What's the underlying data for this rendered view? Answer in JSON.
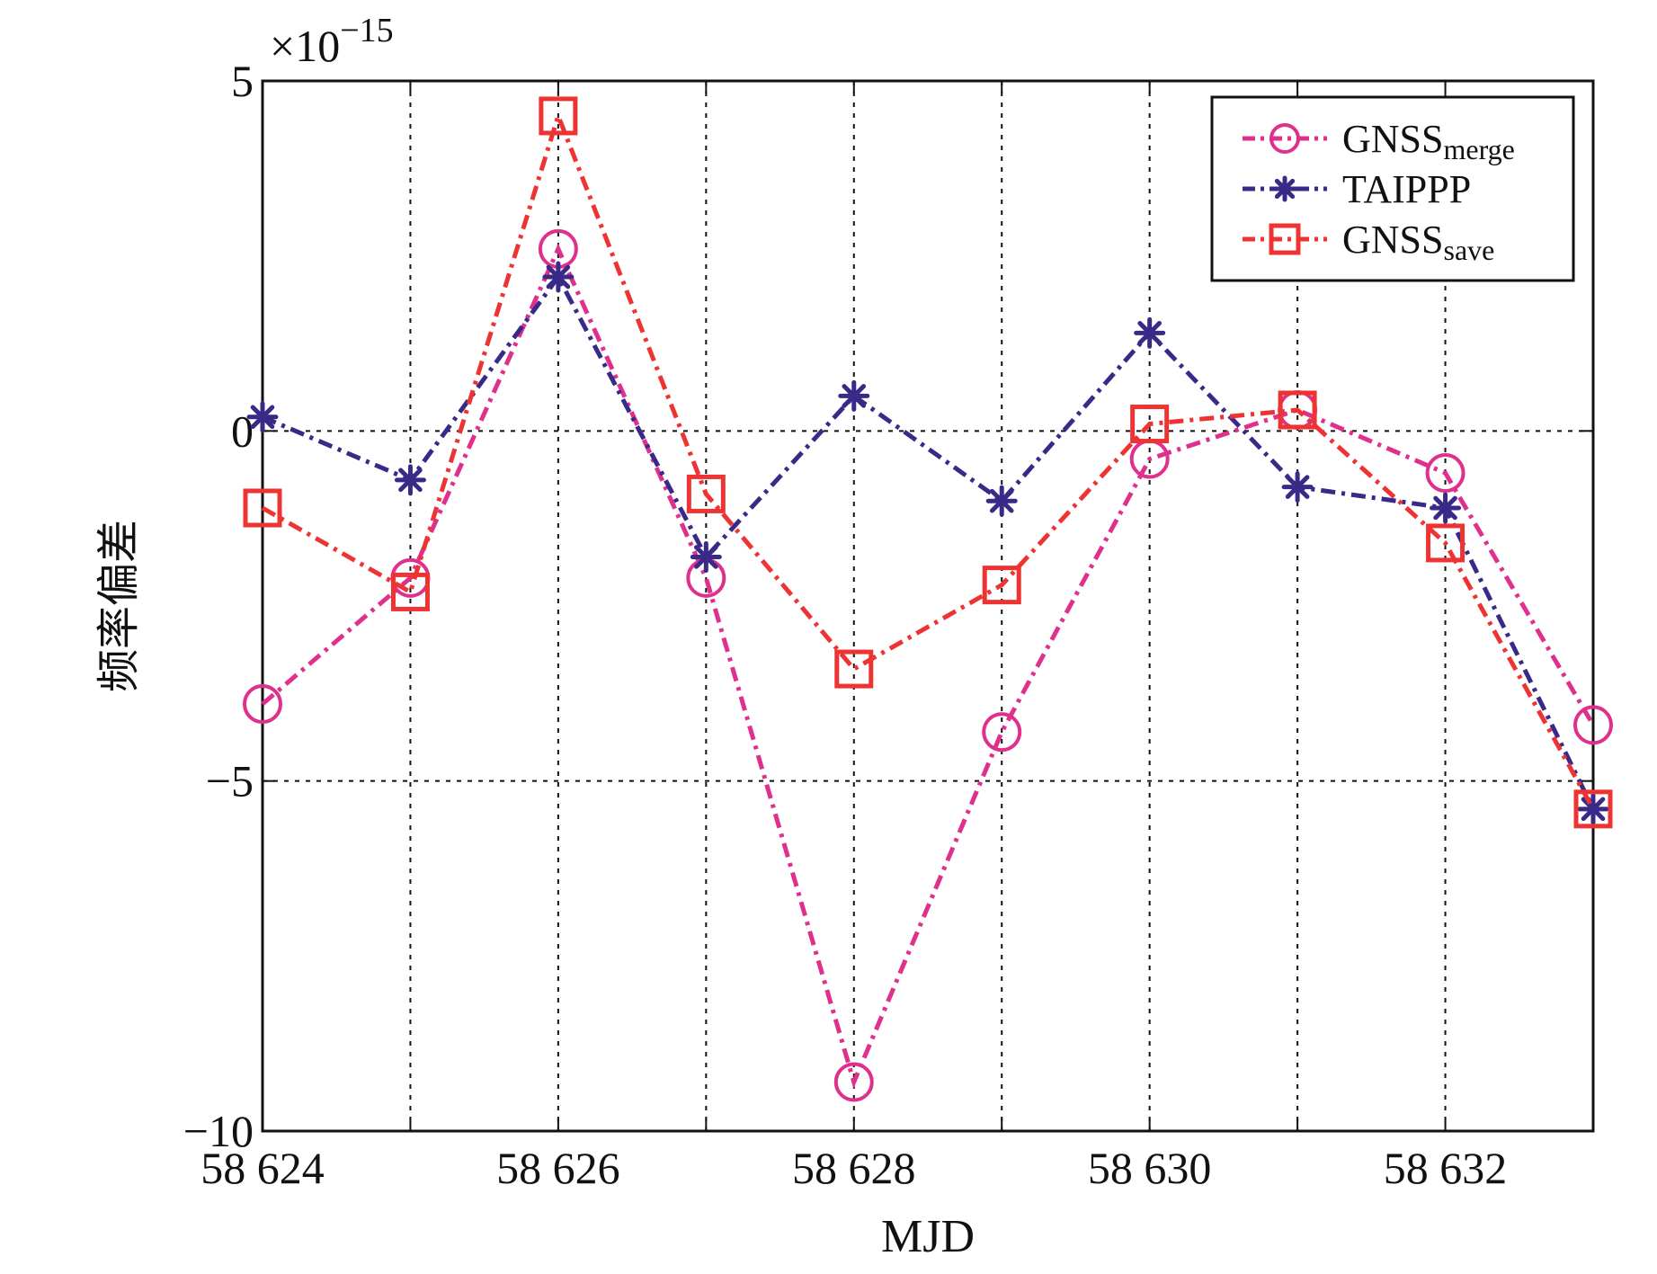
{
  "chart_data": {
    "type": "line",
    "title": "",
    "xlabel": "MJD",
    "ylabel": "频率偏差",
    "exponent_label": "×10",
    "exponent_power": "−15",
    "x": [
      58624,
      58625,
      58626,
      58627,
      58628,
      58629,
      58630,
      58631,
      58632,
      58633
    ],
    "xlim": [
      58624,
      58633
    ],
    "ylim": [
      -10,
      5
    ],
    "x_ticks": [
      58624,
      58625,
      58626,
      58627,
      58628,
      58629,
      58630,
      58631,
      58632,
      58633
    ],
    "x_tick_labels": [
      "58 624",
      "",
      "58 626",
      "",
      "58 628",
      "",
      "58 630",
      "",
      "58 632",
      ""
    ],
    "y_ticks": [
      -10,
      -5,
      0,
      5
    ],
    "y_tick_labels": [
      "−10",
      "−5",
      "0",
      "5"
    ],
    "grid": true,
    "legend_position": "top-right",
    "series": [
      {
        "name": "GNSS",
        "name_sub": "merge",
        "color": "#e0308e",
        "marker": "circle",
        "values": [
          -3.9,
          -2.1,
          2.6,
          -2.1,
          -9.3,
          -4.3,
          -0.4,
          0.3,
          -0.6,
          -4.2
        ]
      },
      {
        "name": "TAIPPP",
        "name_sub": "",
        "color": "#3a2a88",
        "marker": "star",
        "values": [
          0.2,
          -0.7,
          2.2,
          -1.8,
          0.5,
          -1.0,
          1.4,
          -0.8,
          -1.1,
          -5.4
        ]
      },
      {
        "name": "GNSS",
        "name_sub": "save",
        "color": "#ee3333",
        "marker": "square",
        "values": [
          -1.1,
          -2.3,
          4.5,
          -0.9,
          -3.4,
          -2.2,
          0.1,
          0.3,
          -1.6,
          -5.4
        ]
      }
    ]
  }
}
